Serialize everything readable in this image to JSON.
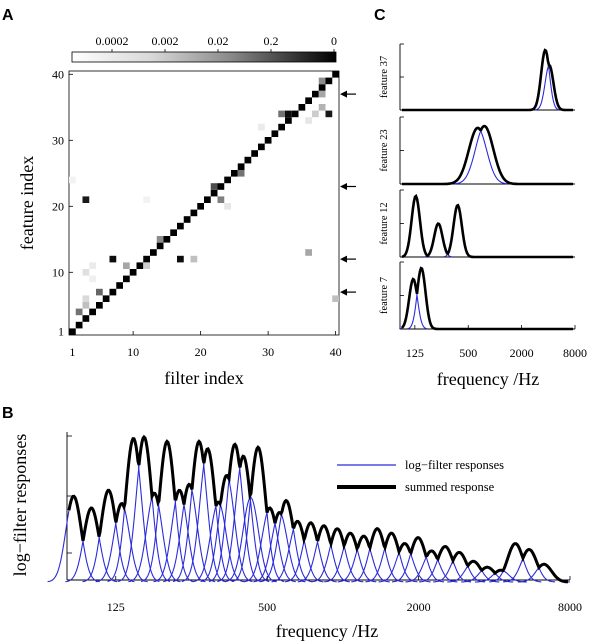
{
  "panels": {
    "a": "A",
    "b": "B",
    "c": "C"
  },
  "chart_data": [
    {
      "id": "A",
      "type": "heatmap",
      "xlabel": "filter index",
      "ylabel": "feature index",
      "xlim": [
        1,
        40
      ],
      "ylim": [
        1,
        40
      ],
      "x_ticks": [
        "1",
        "10",
        "20",
        "30",
        "40"
      ],
      "y_ticks": [
        "1",
        "10",
        "20",
        "30",
        "40"
      ],
      "colorbar_ticks": [
        "0.0002",
        "0.002",
        "0.02",
        "0.2",
        "0"
      ],
      "diagonal": {
        "from": 1,
        "to": 40,
        "value": 1
      },
      "off_diagonal": [
        {
          "x": 2,
          "y": 4,
          "value": 0.55
        },
        {
          "x": 3,
          "y": 5,
          "value": 0.25
        },
        {
          "x": 3,
          "y": 6,
          "value": 0.15
        },
        {
          "x": 3,
          "y": 10,
          "value": 0.12
        },
        {
          "x": 4,
          "y": 11,
          "value": 0.08
        },
        {
          "x": 4,
          "y": 9,
          "value": 0.06
        },
        {
          "x": 3,
          "y": 21,
          "value": 0.9
        },
        {
          "x": 7,
          "y": 12,
          "value": 0.95
        },
        {
          "x": 5,
          "y": 7,
          "value": 0.6
        },
        {
          "x": 9,
          "y": 11,
          "value": 0.35
        },
        {
          "x": 12,
          "y": 11,
          "value": 0.2
        },
        {
          "x": 14,
          "y": 15,
          "value": 0.45
        },
        {
          "x": 17,
          "y": 12,
          "value": 0.95
        },
        {
          "x": 19,
          "y": 12,
          "value": 0.25
        },
        {
          "x": 22,
          "y": 23,
          "value": 0.7
        },
        {
          "x": 23,
          "y": 21,
          "value": 0.5
        },
        {
          "x": 24,
          "y": 20,
          "value": 0.1
        },
        {
          "x": 26,
          "y": 25,
          "value": 0.55
        },
        {
          "x": 32,
          "y": 34,
          "value": 0.55
        },
        {
          "x": 33,
          "y": 34,
          "value": 0.95
        },
        {
          "x": 36,
          "y": 33,
          "value": 0.1
        },
        {
          "x": 37,
          "y": 34,
          "value": 0.2
        },
        {
          "x": 38,
          "y": 35,
          "value": 0.3
        },
        {
          "x": 38,
          "y": 39,
          "value": 0.45
        },
        {
          "x": 38,
          "y": 37,
          "value": 0.35
        },
        {
          "x": 39,
          "y": 34,
          "value": 0.9
        },
        {
          "x": 36,
          "y": 13,
          "value": 0.35
        },
        {
          "x": 40,
          "y": 6,
          "value": 0.25
        },
        {
          "x": 29,
          "y": 32,
          "value": 0.08
        },
        {
          "x": 1,
          "y": 24,
          "value": 0.05
        },
        {
          "x": 12,
          "y": 21,
          "value": 0.05
        }
      ],
      "arrows_at_feature": [
        37,
        23,
        12,
        7
      ]
    },
    {
      "id": "B",
      "type": "line",
      "xlabel": "frequency /Hz",
      "ylabel": "log−filter responses",
      "xscale": "log",
      "xlim": [
        80,
        8000
      ],
      "x_ticks": [
        "125",
        "500",
        "2000",
        "8000"
      ],
      "legend": [
        "log−filter responses",
        "summed response"
      ],
      "legend_position": "top-right",
      "series": [
        {
          "name": "log−filter responses",
          "color": "#2b2bdc"
        },
        {
          "name": "summed response",
          "color": "#000000"
        }
      ],
      "peaks_hz": [
        85,
        100,
        117,
        132,
        147,
        162,
        178,
        200,
        224,
        245,
        268,
        290,
        320,
        345,
        372,
        402,
        430,
        460,
        512,
        560,
        595,
        660,
        745,
        840,
        950,
        1070,
        1210,
        1370,
        1560,
        1760,
        1990,
        2250,
        2550,
        2900,
        3300,
        3750,
        4250,
        4850,
        5500,
        6300
      ],
      "peak_levels": [
        0.58,
        0.5,
        0.62,
        0.53,
        0.97,
        0.98,
        0.6,
        0.95,
        0.62,
        0.66,
        0.95,
        0.9,
        0.54,
        0.72,
        0.93,
        0.85,
        0.57,
        0.91,
        0.5,
        0.47,
        0.55,
        0.41,
        0.4,
        0.38,
        0.36,
        0.33,
        0.31,
        0.36,
        0.33,
        0.26,
        0.3,
        0.21,
        0.24,
        0.2,
        0.14,
        0.1,
        0.08,
        0.26,
        0.22,
        0.12
      ]
    },
    {
      "id": "C",
      "type": "line",
      "xlabel": "frequency /Hz",
      "xscale": "log",
      "xlim": [
        85,
        8000
      ],
      "x_ticks": [
        "125",
        "500",
        "2000",
        "8000"
      ],
      "subplots": [
        {
          "label": "feature 37",
          "peaks_hz": [
            3700,
            4100
          ],
          "peak_levels": [
            1.0,
            0.75
          ]
        },
        {
          "label": "feature 23",
          "peaks_hz": [
            640,
            760
          ],
          "peak_levels": [
            0.92,
            0.95
          ]
        },
        {
          "label": "feature 12",
          "peaks_hz": [
            128,
            230,
            380
          ],
          "peak_levels": [
            1.0,
            0.55,
            0.85
          ]
        },
        {
          "label": "feature 7",
          "peaks_hz": [
            120,
            148
          ],
          "peak_levels": [
            0.82,
            1.0
          ]
        }
      ]
    }
  ]
}
